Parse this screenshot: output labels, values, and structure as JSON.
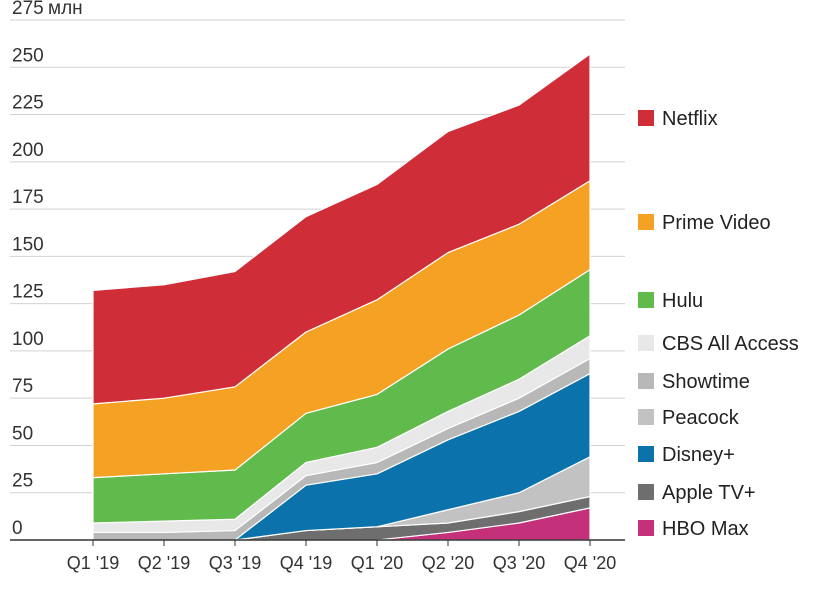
{
  "chart_data": {
    "type": "area",
    "stacked": true,
    "title": "",
    "unit_label": "млн",
    "xlabel": "",
    "ylabel": "",
    "ylim": [
      0,
      275
    ],
    "yticks": [
      0,
      25,
      50,
      75,
      100,
      125,
      150,
      175,
      200,
      225,
      250,
      275
    ],
    "grid": true,
    "legend_position": "right",
    "categories": [
      "Q1 '19",
      "Q2 '19",
      "Q3 '19",
      "Q4 '19",
      "Q1 '20",
      "Q2 '20",
      "Q3 '20",
      "Q4 '20"
    ],
    "series": [
      {
        "name": "HBO Max",
        "color": "#c4307a",
        "values": [
          0,
          0,
          0,
          0,
          0,
          4,
          9,
          17
        ]
      },
      {
        "name": "Apple TV+",
        "color": "#6e6e6e",
        "values": [
          0,
          0,
          0,
          5,
          7,
          5,
          6,
          6
        ]
      },
      {
        "name": "Peacock",
        "color": "#c2c2c2",
        "values": [
          0,
          0,
          0,
          0,
          0,
          7,
          10,
          21
        ]
      },
      {
        "name": "Disney+",
        "color": "#0b72ab",
        "values": [
          0,
          0,
          0,
          24,
          28,
          37,
          43,
          44
        ]
      },
      {
        "name": "Showtime",
        "color": "#b8b8b8",
        "values": [
          4,
          4,
          5,
          5,
          6,
          6,
          7,
          8
        ]
      },
      {
        "name": "CBS All Access",
        "color": "#e8e8e8",
        "values": [
          5,
          6,
          6,
          7,
          8,
          9,
          10,
          12
        ]
      },
      {
        "name": "Hulu",
        "color": "#61bb4c",
        "values": [
          24,
          25,
          26,
          26,
          28,
          33,
          34,
          35
        ]
      },
      {
        "name": "Prime Video",
        "color": "#f5a224",
        "values": [
          39,
          40,
          44,
          43,
          50,
          51,
          48,
          47
        ]
      },
      {
        "name": "Netflix",
        "color": "#cf2e38",
        "values": [
          60,
          60,
          61,
          61,
          61,
          64,
          63,
          67
        ]
      }
    ]
  }
}
